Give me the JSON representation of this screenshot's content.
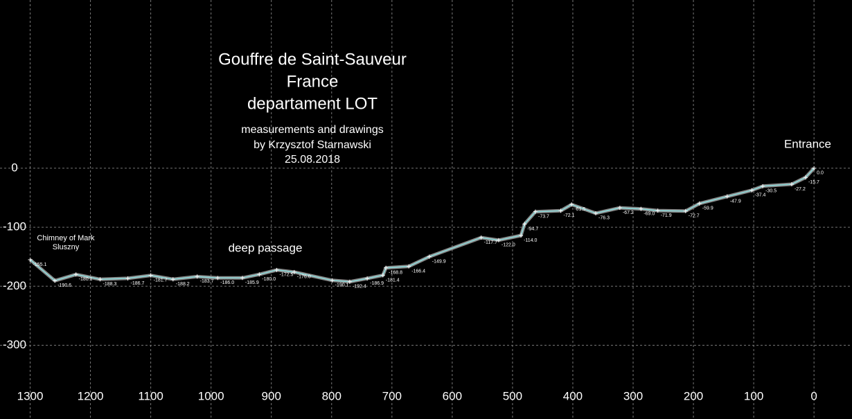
{
  "chart_data": {
    "type": "line",
    "title_lines": [
      "Gouffre de Saint-Sauveur",
      "France",
      "departament LOT"
    ],
    "credit_lines": [
      "measurements and drawings",
      "by Krzysztof Starnawski",
      "25.08.2018"
    ],
    "annotations": [
      "Chimney of Mark Sluszny",
      "deep passage",
      "Entrance"
    ],
    "xlim": [
      1350,
      -63
    ],
    "xticks": [
      1300,
      1200,
      1100,
      1000,
      900,
      800,
      700,
      600,
      500,
      400,
      300,
      200,
      100,
      0
    ],
    "ylim": [
      -425,
      285
    ],
    "yticks": [
      0,
      -100,
      -200,
      -300
    ],
    "grid": true,
    "x": [
      0,
      14,
      37,
      85,
      103,
      144,
      190,
      213,
      259,
      287,
      322,
      362,
      402,
      420,
      462,
      480,
      486,
      523,
      552,
      638,
      672,
      710,
      715,
      741,
      770,
      799,
      862,
      891,
      920,
      948,
      989,
      1023,
      1063,
      1100,
      1138,
      1184,
      1224,
      1259,
      1300
    ],
    "series": [
      {
        "color": "#8fe0e0",
        "values": [
          0.0,
          -15.7,
          -27.2,
          -30.5,
          -37.4,
          -47.9,
          -59.9,
          -72.7,
          -71.9,
          -69.0,
          -67.2,
          -76.3,
          -61.5,
          -72.1,
          -73.7,
          -94.7,
          -114.0,
          -122.0,
          -117.7,
          -149.9,
          -166.4,
          -168.8,
          -181.4,
          -186.9,
          -192.4,
          -190.1,
          -176.0,
          -172.5,
          -180.0,
          -185.9,
          -186.0,
          -183.7,
          -188.2,
          -181.7,
          -186.7,
          -188.3,
          -180.1,
          -190.6,
          -155.1
        ],
        "value_labels": [
          "0.0",
          "-15.7",
          "-27.2",
          "-30.5",
          "-37.4",
          "-47.9",
          "-59.9",
          "-72.7",
          "-71.9",
          "-69.0",
          "-67.2",
          "-76.3",
          "-61.5",
          "-72.1",
          "-73.7",
          "-94.7",
          "-114.0",
          "-122.0",
          "-117.7",
          "-149.9",
          "-166.4",
          "-168.8",
          "-181.4",
          "-186.9",
          "-192.4",
          "-190.1",
          "-176.0",
          "-172.5",
          "-180.0",
          "-185.9",
          "-186.0",
          "-183.7",
          "-188.2",
          "-181.7",
          "-186.7",
          "-188.3",
          "-180.1",
          "-190.6",
          "-155.1"
        ]
      }
    ]
  }
}
